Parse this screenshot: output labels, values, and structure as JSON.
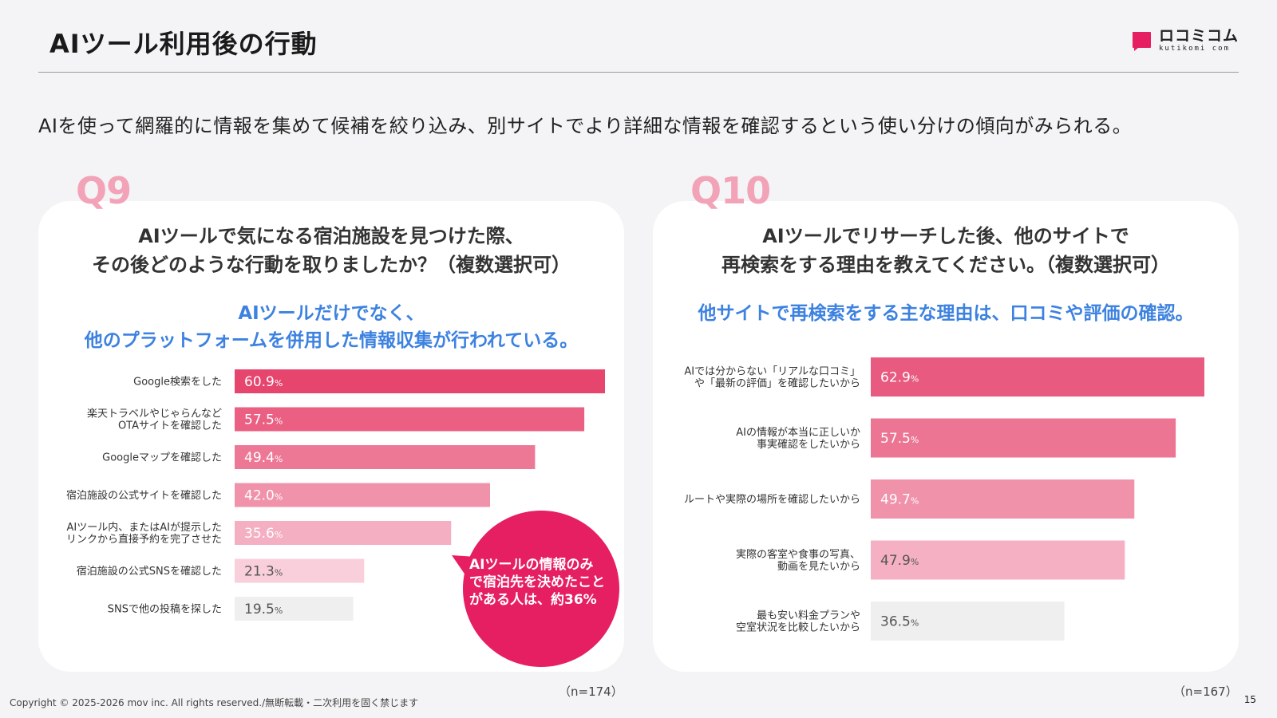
{
  "header": {
    "title": "AIツール利用後の行動",
    "logo_jp": "ロコミコム",
    "logo_en": "kutikomi com"
  },
  "lead": "AIを使って網羅的に情報を集めて候補を絞り込み、別サイトでより詳細な情報を確認するという使い分けの傾向がみられる。",
  "footer": {
    "copyright": "Copyright © 2025-2026 mov inc. All rights reserved./無断転載・二次利用を固く禁じます",
    "page": "15"
  },
  "colors": {
    "accent_pink": "#e61e62",
    "q_label": "#f2a3b8",
    "answer_blue": "#3d82e0",
    "bar_gray": "#efefef"
  },
  "q9": {
    "label": "Q9",
    "question_line1": "AIツールで気になる宿泊施設を見つけた際、",
    "question_line2": "その後どのような行動を取りましたか？（複数選択可）",
    "answer_line1": "AIツールだけでなく、",
    "answer_line2": "他のプラットフォームを併用した情報収集が行われている。",
    "n": "（n=174）",
    "callout": "AIツールの情報のみで宿泊先を決めたことがある人は、約36%"
  },
  "q10": {
    "label": "Q10",
    "question_line1": "AIツールでリサーチした後、他のサイトで",
    "question_line2": "再検索をする理由を教えてください。（複数選択可）",
    "answer_line1": "他サイトで再検索をする主な理由は、口コミや評価の確認。",
    "n": "（n=167）"
  },
  "chart_data": [
    {
      "type": "bar",
      "orientation": "horizontal",
      "categories": [
        [
          "Google検索をした"
        ],
        [
          "楽天トラベルやじゃらんなど",
          "OTAサイトを確認した"
        ],
        [
          "Googleマップを確認した"
        ],
        [
          "宿泊施設の公式サイトを確認した"
        ],
        [
          "AIツール内、またはAIが提示した",
          "リンクから直接予約を完了させた"
        ],
        [
          "宿泊施設の公式SNSを確認した"
        ],
        [
          "SNSで他の投稿を探した"
        ]
      ],
      "values": [
        60.9,
        57.5,
        49.4,
        42.0,
        35.6,
        21.3,
        19.5
      ],
      "value_labels": [
        "60.9",
        "57.5",
        "49.4",
        "42.0",
        "35.6",
        "21.3",
        "19.5"
      ],
      "unit": "%",
      "colors": [
        "#e6456e",
        "#ea5f82",
        "#ed7896",
        "#f192ab",
        "#f5afc2",
        "#f9cfdb",
        "#efefef"
      ],
      "xlim": [
        0,
        60.9
      ]
    },
    {
      "type": "bar",
      "orientation": "horizontal",
      "categories": [
        [
          "AIでは分からない「リアルな口コミ」",
          "や「最新の評価」を確認したいから"
        ],
        [
          "AIの情報が本当に正しいか",
          "事実確認をしたいから"
        ],
        [
          "ルートや実際の場所を確認したいから"
        ],
        [
          "実際の客室や食事の写真、",
          "動画を見たいから"
        ],
        [
          "最も安い料金プランや",
          "空室状況を比較したいから"
        ]
      ],
      "values": [
        62.9,
        57.5,
        49.7,
        47.9,
        36.5
      ],
      "value_labels": [
        "62.9",
        "57.5",
        "49.7",
        "47.9",
        "36.5"
      ],
      "unit": "%",
      "colors": [
        "#e85a7f",
        "#ec7594",
        "#f192ab",
        "#f5b1c3",
        "#efefef"
      ],
      "xlim": [
        0,
        62.9
      ]
    }
  ]
}
